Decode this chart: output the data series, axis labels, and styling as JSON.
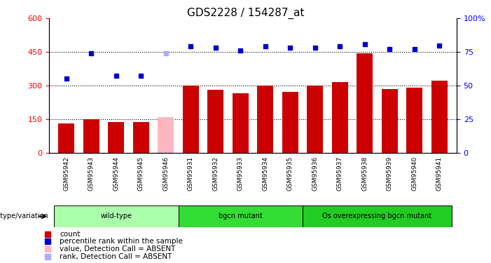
{
  "title": "GDS2228 / 154287_at",
  "samples": [
    "GSM95942",
    "GSM95943",
    "GSM95944",
    "GSM95945",
    "GSM95946",
    "GSM95931",
    "GSM95932",
    "GSM95933",
    "GSM95934",
    "GSM95935",
    "GSM95936",
    "GSM95937",
    "GSM95938",
    "GSM95939",
    "GSM95940",
    "GSM95941"
  ],
  "counts": [
    130,
    150,
    135,
    135,
    160,
    300,
    280,
    265,
    300,
    270,
    300,
    315,
    445,
    285,
    290,
    320
  ],
  "percentiles": [
    55,
    74,
    57,
    57,
    74,
    79,
    78,
    76,
    79,
    78,
    78,
    79,
    81,
    77,
    77,
    80
  ],
  "absent_indices": [
    4
  ],
  "groups": [
    {
      "label": "wild-type",
      "start": 0,
      "end": 4,
      "color": "#AAFFAA"
    },
    {
      "label": "bgcn mutant",
      "start": 5,
      "end": 9,
      "color": "#33DD33"
    },
    {
      "label": "Os overexpressing bgcn mutant",
      "start": 10,
      "end": 15,
      "color": "#22CC22"
    }
  ],
  "bar_color": "#CC0000",
  "absent_bar_color": "#FFB6C1",
  "percentile_color": "#0000CC",
  "absent_percentile_color": "#AAAAFF",
  "ylim_left": [
    0,
    600
  ],
  "ylim_right": [
    0,
    100
  ],
  "yticks_left": [
    0,
    150,
    300,
    450,
    600
  ],
  "yticks_right": [
    0,
    25,
    50,
    75,
    100
  ],
  "legend_items": [
    {
      "color": "#CC0000",
      "label": "count"
    },
    {
      "color": "#0000CC",
      "label": "percentile rank within the sample"
    },
    {
      "color": "#FFB6C1",
      "label": "value, Detection Call = ABSENT"
    },
    {
      "color": "#AAAAFF",
      "label": "rank, Detection Call = ABSENT"
    }
  ]
}
